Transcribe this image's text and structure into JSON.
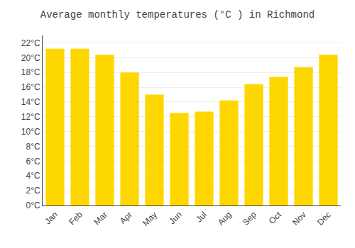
{
  "chart_data": {
    "type": "bar",
    "title": "Average monthly temperatures (°C ) in Richmond",
    "categories": [
      "Jan",
      "Feb",
      "Mar",
      "Apr",
      "May",
      "Jun",
      "Jul",
      "Aug",
      "Sep",
      "Oct",
      "Nov",
      "Dec"
    ],
    "values": [
      21.2,
      21.2,
      20.4,
      18.0,
      15.0,
      12.5,
      12.7,
      14.2,
      16.4,
      17.4,
      18.7,
      20.4
    ],
    "color": "#FFD700",
    "ylim": [
      0,
      23
    ],
    "yticks": [
      {
        "value": 0,
        "label": "0°C"
      },
      {
        "value": 2,
        "label": "2°C"
      },
      {
        "value": 4,
        "label": "4°C"
      },
      {
        "value": 6,
        "label": "6°C"
      },
      {
        "value": 8,
        "label": "8°C"
      },
      {
        "value": 10,
        "label": "10°C"
      },
      {
        "value": 12,
        "label": "12°C"
      },
      {
        "value": 14,
        "label": "14°C"
      },
      {
        "value": 16,
        "label": "16°C"
      },
      {
        "value": 18,
        "label": "18°C"
      },
      {
        "value": 20,
        "label": "20°C"
      },
      {
        "value": 22,
        "label": "22°C"
      }
    ],
    "grid": true
  }
}
